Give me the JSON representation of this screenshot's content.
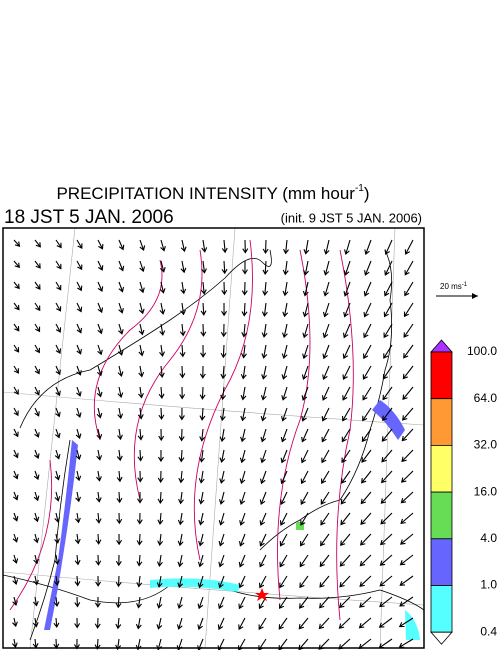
{
  "header": {
    "title": "PRECIPITATION INTENSITY (mm hour",
    "title_exponent": "-1",
    "title_close": ")",
    "valid_time": "18 JST 5 JAN. 2006",
    "init_time": "(init. 9 JST 5 JAN. 2006)"
  },
  "vector_scale": {
    "label": "20 ms",
    "exponent": "-1"
  },
  "colorbar": {
    "labels": [
      "100.0",
      "64.0",
      "32.0",
      "16.0",
      "4.0",
      "1.0",
      "0.4"
    ],
    "colors": [
      "#ff0000",
      "#ff9933",
      "#ffff66",
      "#66dd55",
      "#6666ff",
      "#55ffff"
    ],
    "over_color": "#aa33ff",
    "under_color": "#ffffff"
  }
}
